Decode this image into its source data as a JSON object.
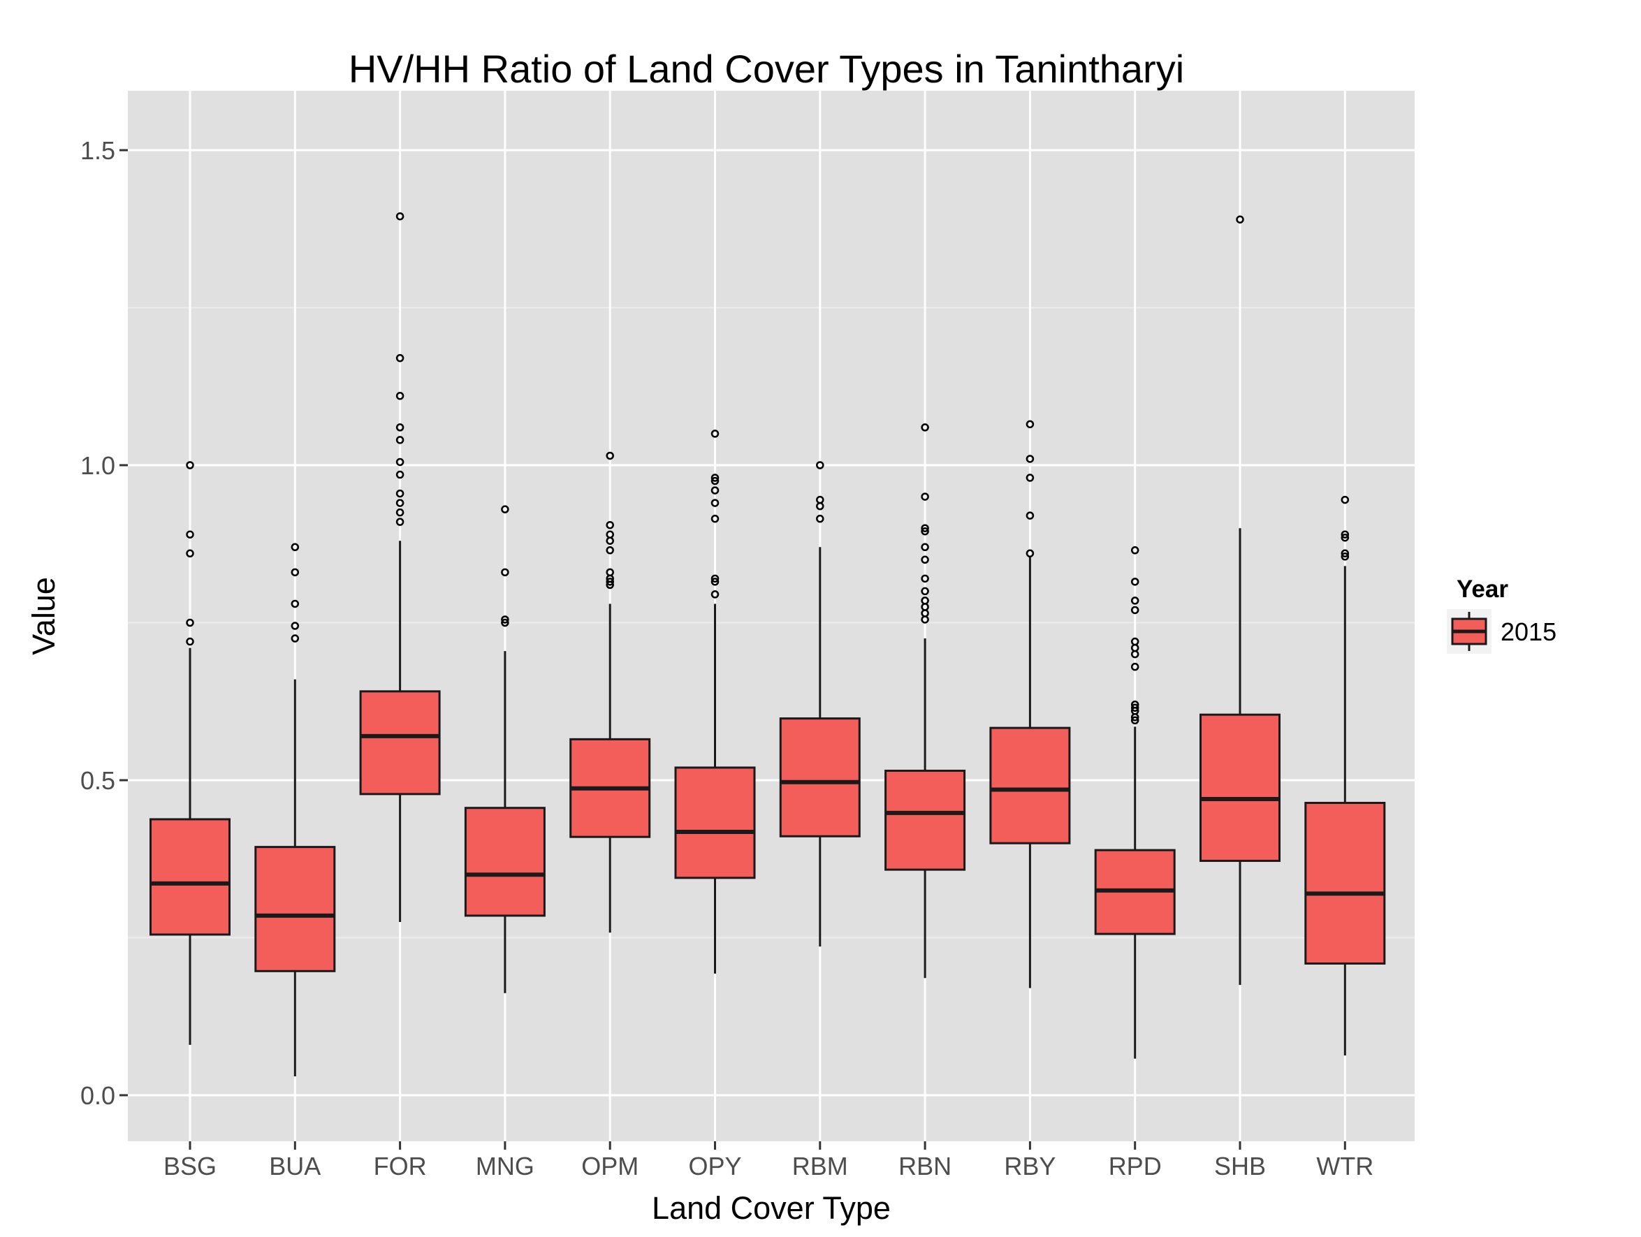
{
  "chart_data": {
    "type": "boxplot",
    "title": "HV/HH Ratio of Land Cover Types in Tanintharyi",
    "xlabel": "Land Cover Type",
    "ylabel": "Value",
    "ylim": [
      -0.07,
      1.58
    ],
    "yticks": [
      0.0,
      0.5,
      1.0,
      1.5
    ],
    "ytick_labels": [
      "0.0",
      "0.5",
      "1.0",
      "1.5"
    ],
    "grid": true,
    "legend": {
      "title": "Year",
      "position": "right",
      "entries": [
        {
          "label": "2015",
          "color": "#f35e5a"
        }
      ]
    },
    "colors": {
      "panel_background": "#e0e0e0",
      "grid_major": "#ffffff",
      "grid_minor": "#ededed",
      "box_fill": "#f35e5a",
      "box_stroke": "#1a1a1a",
      "tick_text": "#4d4d4d"
    },
    "categories": [
      "BSG",
      "BUA",
      "FOR",
      "MNG",
      "OPM",
      "OPY",
      "RBM",
      "RBN",
      "RBY",
      "RPD",
      "SHB",
      "WTR"
    ],
    "series": [
      {
        "name": "2015",
        "boxes": [
          {
            "category": "BSG",
            "whisker_low": 0.08,
            "q1": 0.255,
            "median": 0.336,
            "q3": 0.438,
            "whisker_high": 0.71,
            "outliers": [
              0.72,
              0.75,
              0.86,
              0.89,
              1.0
            ]
          },
          {
            "category": "BUA",
            "whisker_low": 0.03,
            "q1": 0.197,
            "median": 0.285,
            "q3": 0.394,
            "whisker_high": 0.66,
            "outliers": [
              0.725,
              0.745,
              0.78,
              0.83,
              0.87
            ]
          },
          {
            "category": "FOR",
            "whisker_low": 0.275,
            "q1": 0.478,
            "median": 0.57,
            "q3": 0.641,
            "whisker_high": 0.88,
            "outliers": [
              0.91,
              0.925,
              0.94,
              0.955,
              0.985,
              1.005,
              1.04,
              1.06,
              1.11,
              1.17,
              1.395
            ]
          },
          {
            "category": "MNG",
            "whisker_low": 0.162,
            "q1": 0.285,
            "median": 0.35,
            "q3": 0.456,
            "whisker_high": 0.705,
            "outliers": [
              0.75,
              0.755,
              0.83,
              0.93
            ]
          },
          {
            "category": "OPM",
            "whisker_low": 0.258,
            "q1": 0.41,
            "median": 0.487,
            "q3": 0.565,
            "whisker_high": 0.78,
            "outliers": [
              0.81,
              0.815,
              0.82,
              0.83,
              0.865,
              0.88,
              0.89,
              0.905,
              1.015
            ]
          },
          {
            "category": "OPY",
            "whisker_low": 0.193,
            "q1": 0.345,
            "median": 0.418,
            "q3": 0.52,
            "whisker_high": 0.78,
            "outliers": [
              0.795,
              0.815,
              0.82,
              0.915,
              0.94,
              0.96,
              0.975,
              0.98,
              1.05
            ]
          },
          {
            "category": "RBM",
            "whisker_low": 0.236,
            "q1": 0.411,
            "median": 0.497,
            "q3": 0.598,
            "whisker_high": 0.87,
            "outliers": [
              0.915,
              0.935,
              0.945,
              1.0
            ]
          },
          {
            "category": "RBN",
            "whisker_low": 0.186,
            "q1": 0.358,
            "median": 0.448,
            "q3": 0.515,
            "whisker_high": 0.725,
            "outliers": [
              0.755,
              0.765,
              0.775,
              0.785,
              0.8,
              0.82,
              0.85,
              0.87,
              0.895,
              0.9,
              0.95,
              1.06
            ]
          },
          {
            "category": "RBY",
            "whisker_low": 0.17,
            "q1": 0.4,
            "median": 0.485,
            "q3": 0.583,
            "whisker_high": 0.855,
            "outliers": [
              0.86,
              0.92,
              0.98,
              1.01,
              1.065
            ]
          },
          {
            "category": "RPD",
            "whisker_low": 0.058,
            "q1": 0.256,
            "median": 0.325,
            "q3": 0.389,
            "whisker_high": 0.585,
            "outliers": [
              0.595,
              0.6,
              0.61,
              0.615,
              0.62,
              0.68,
              0.7,
              0.71,
              0.72,
              0.77,
              0.785,
              0.815,
              0.865
            ]
          },
          {
            "category": "SHB",
            "whisker_low": 0.175,
            "q1": 0.372,
            "median": 0.47,
            "q3": 0.604,
            "whisker_high": 0.9,
            "outliers": [
              1.39
            ]
          },
          {
            "category": "WTR",
            "whisker_low": 0.063,
            "q1": 0.209,
            "median": 0.32,
            "q3": 0.464,
            "whisker_high": 0.84,
            "outliers": [
              0.855,
              0.86,
              0.885,
              0.89,
              0.945
            ]
          }
        ]
      }
    ]
  }
}
